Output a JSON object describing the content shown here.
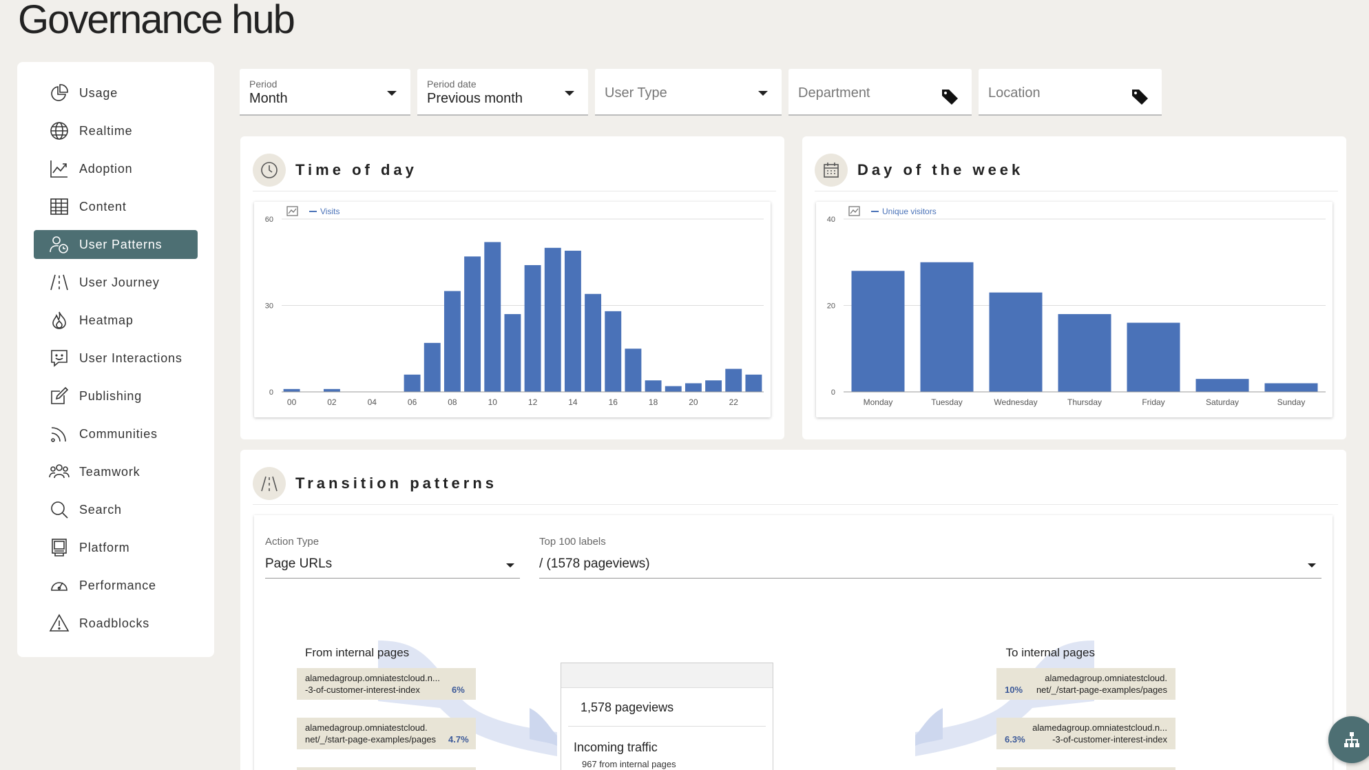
{
  "app": {
    "title": "Governance hub"
  },
  "sidebar": {
    "items": [
      {
        "label": "Usage",
        "icon": "pie-chart-icon"
      },
      {
        "label": "Realtime",
        "icon": "globe-icon"
      },
      {
        "label": "Adoption",
        "icon": "trend-chart-icon"
      },
      {
        "label": "Content",
        "icon": "table-icon"
      },
      {
        "label": "User Patterns",
        "icon": "user-clock-icon",
        "active": true
      },
      {
        "label": "User Journey",
        "icon": "road-icon"
      },
      {
        "label": "Heatmap",
        "icon": "flame-icon"
      },
      {
        "label": "User Interactions",
        "icon": "chat-smile-icon"
      },
      {
        "label": "Publishing",
        "icon": "edit-icon"
      },
      {
        "label": "Communities",
        "icon": "rss-icon"
      },
      {
        "label": "Teamwork",
        "icon": "group-icon"
      },
      {
        "label": "Search",
        "icon": "search-icon"
      },
      {
        "label": "Platform",
        "icon": "monitor-icon"
      },
      {
        "label": "Performance",
        "icon": "gauge-icon"
      },
      {
        "label": "Roadblocks",
        "icon": "warning-icon"
      }
    ]
  },
  "filters": {
    "period": {
      "label": "Period",
      "value": "Month"
    },
    "period_date": {
      "label": "Period date",
      "value": "Previous month"
    },
    "user_type": {
      "placeholder": "User Type"
    },
    "department": {
      "placeholder": "Department"
    },
    "location": {
      "placeholder": "Location"
    }
  },
  "time_of_day": {
    "title": "Time of day",
    "icon": "clock-icon"
  },
  "day_of_week": {
    "title": "Day of the week",
    "icon": "calendar-icon"
  },
  "chart_data": [
    {
      "type": "bar",
      "legend": "Visits",
      "categories": [
        "00",
        "01",
        "02",
        "03",
        "04",
        "05",
        "06",
        "07",
        "08",
        "09",
        "10",
        "11",
        "12",
        "13",
        "14",
        "15",
        "16",
        "17",
        "18",
        "19",
        "20",
        "21",
        "22",
        "23"
      ],
      "values": [
        1,
        0,
        1,
        0,
        0,
        0,
        6,
        17,
        35,
        47,
        52,
        27,
        44,
        50,
        49,
        34,
        28,
        15,
        4,
        2,
        3,
        4,
        8,
        6
      ],
      "tick_labels": [
        "00",
        "02",
        "04",
        "06",
        "08",
        "10",
        "12",
        "14",
        "16",
        "18",
        "20",
        "22"
      ],
      "y_ticks": [
        "0",
        "30",
        "60"
      ],
      "ylim": [
        0,
        60
      ],
      "color": "#4a72b8"
    },
    {
      "type": "bar",
      "legend": "Unique visitors",
      "categories": [
        "Monday",
        "Tuesday",
        "Wednesday",
        "Thursday",
        "Friday",
        "Saturday",
        "Sunday"
      ],
      "values": [
        28,
        30,
        23,
        18,
        16,
        3,
        2
      ],
      "y_ticks": [
        "0",
        "20",
        "40"
      ],
      "ylim": [
        0,
        40
      ],
      "color": "#4a72b8"
    }
  ],
  "transition": {
    "title": "Transition patterns",
    "icon": "road-icon",
    "action_type": {
      "label": "Action Type",
      "value": "Page URLs"
    },
    "top_labels": {
      "label": "Top 100 labels",
      "value": "/ (1578 pageviews)"
    },
    "from_title": "From internal pages",
    "to_title": "To internal pages",
    "from_rows": [
      {
        "url1": "alamedagroup.omniatestcloud.n...",
        "url2": "-3-of-customer-interest-index",
        "pct": "6%"
      },
      {
        "url1": "alamedagroup.omniatestcloud.",
        "url2": "net/_/start-page-examples/pages",
        "pct": "4.7%"
      }
    ],
    "to_rows": [
      {
        "url1": "alamedagroup.omniatestcloud.",
        "url2": "net/_/start-page-examples/pages",
        "pct": "10%"
      },
      {
        "url1": "alamedagroup.omniatestcloud.n...",
        "url2": "-3-of-customer-interest-index",
        "pct": "6.3%"
      }
    ],
    "pageviews": "1,578 pageviews",
    "incoming": "Incoming traffic",
    "incoming_detail": "967 from internal pages"
  },
  "fab": {
    "icon": "sitemap-icon"
  }
}
